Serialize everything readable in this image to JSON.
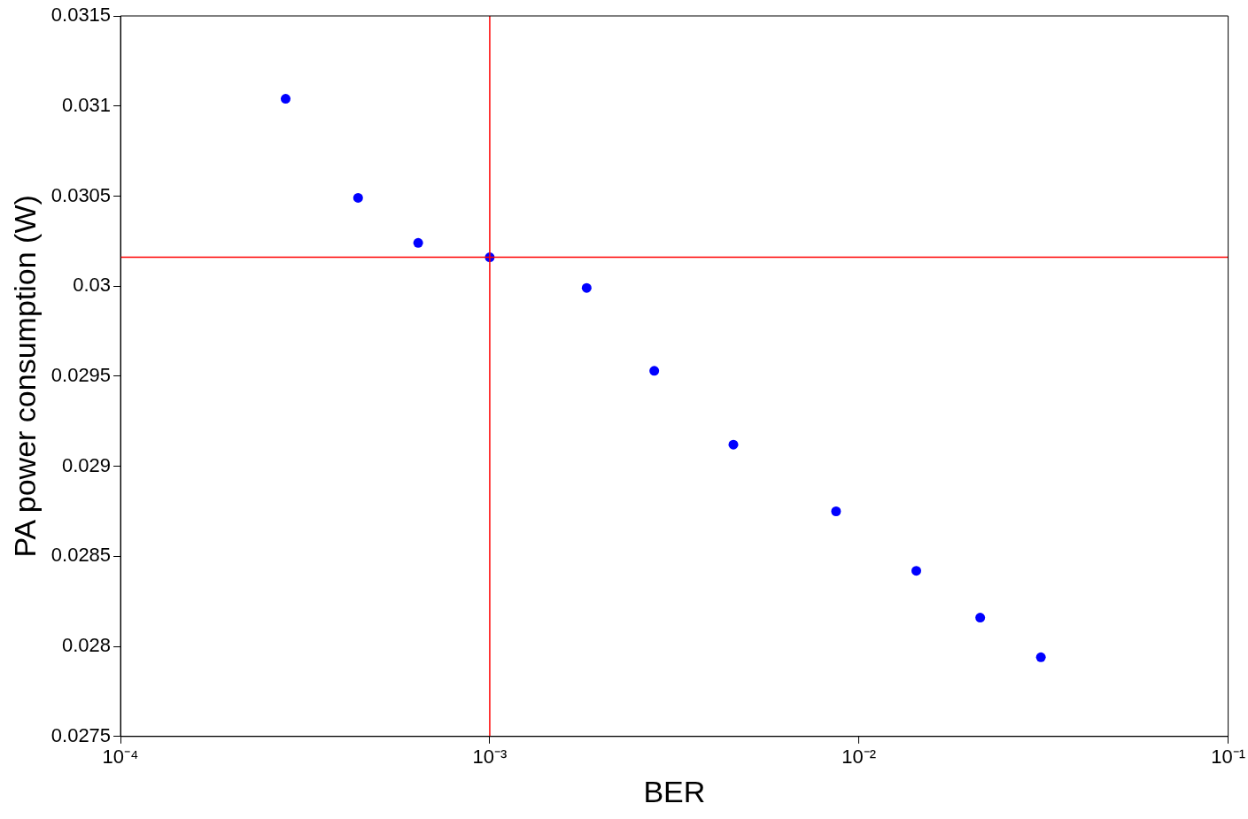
{
  "chart_data": {
    "type": "scatter",
    "xlabel": "BER",
    "ylabel": "PA power consumption (W)",
    "log": "x",
    "grid": false,
    "legend": false,
    "marker": "circle",
    "xlim": [
      0.0001,
      0.1
    ],
    "xticks": [
      {
        "value": 0.0001,
        "label": "10⁻⁴"
      },
      {
        "value": 0.001,
        "label": "10⁻³"
      },
      {
        "value": 0.01,
        "label": "10⁻²"
      },
      {
        "value": 0.1,
        "label": "10⁻¹"
      }
    ],
    "ylim": [
      0.0275,
      0.0315
    ],
    "yticks": [
      0.0275,
      0.028,
      0.0285,
      0.029,
      0.0295,
      0.03,
      0.0305,
      0.031,
      0.0315
    ],
    "series": [
      {
        "color": "#0000ff",
        "x": [
          0.00028,
          0.00044,
          0.00064,
          0.001,
          0.00183,
          0.00279,
          0.00457,
          0.00867,
          0.0143,
          0.0213,
          0.0311
        ],
        "values": [
          0.03104,
          0.03049,
          0.03024,
          0.03016,
          0.02999,
          0.02953,
          0.02912,
          0.02875,
          0.02842,
          0.02816,
          0.02794
        ]
      }
    ],
    "ref_lines": [
      {
        "axis": "x",
        "value": 0.001,
        "color": "#ff0000"
      },
      {
        "axis": "y",
        "value": 0.03016,
        "color": "#ff0000"
      }
    ]
  }
}
